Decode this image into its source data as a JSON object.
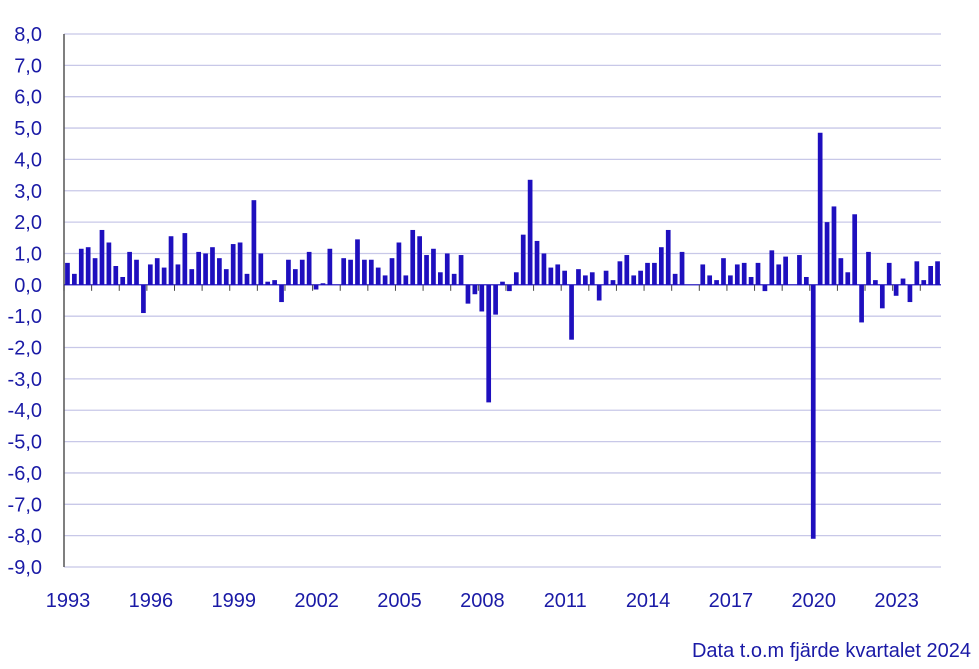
{
  "chart_data": {
    "type": "bar",
    "start_year": 1993,
    "frequency": "quarterly",
    "values": [
      0.7,
      0.35,
      1.15,
      1.2,
      0.85,
      1.75,
      1.35,
      0.6,
      0.25,
      1.05,
      0.8,
      -0.9,
      0.65,
      0.85,
      0.55,
      1.55,
      0.65,
      1.65,
      0.5,
      1.05,
      1.0,
      1.2,
      0.85,
      0.5,
      1.3,
      1.35,
      0.35,
      2.7,
      1.0,
      0.1,
      0.15,
      -0.55,
      0.8,
      0.5,
      0.8,
      1.05,
      -0.15,
      0.05,
      1.15,
      0.0,
      0.85,
      0.8,
      1.45,
      0.8,
      0.8,
      0.55,
      0.3,
      0.85,
      1.35,
      0.3,
      1.75,
      1.55,
      0.95,
      1.15,
      0.4,
      1.0,
      0.35,
      0.95,
      -0.6,
      -0.3,
      -0.85,
      -3.75,
      -0.95,
      0.1,
      -0.2,
      0.4,
      1.6,
      3.35,
      1.4,
      1.0,
      0.55,
      0.65,
      0.45,
      -1.75,
      0.5,
      0.3,
      0.4,
      -0.5,
      0.45,
      0.15,
      0.75,
      0.95,
      0.3,
      0.45,
      0.7,
      0.7,
      1.2,
      1.75,
      0.35,
      1.05,
      0.0,
      0.0,
      0.65,
      0.3,
      0.15,
      0.85,
      0.3,
      0.65,
      0.7,
      0.25,
      0.7,
      -0.2,
      1.1,
      0.65,
      0.9,
      0.0,
      0.95,
      0.25,
      -8.1,
      4.85,
      2.0,
      2.5,
      0.85,
      0.4,
      2.25,
      -1.2,
      1.05,
      0.15,
      -0.75,
      0.7,
      -0.35,
      0.2,
      -0.55,
      0.75,
      0.15,
      0.6,
      0.75
    ],
    "x_tick_labels": [
      "1993",
      "1996",
      "1999",
      "2002",
      "2005",
      "2008",
      "2011",
      "2014",
      "2017",
      "2020",
      "2023"
    ],
    "y_tick_labels": [
      "8,0",
      "7,0",
      "6,0",
      "5,0",
      "4,0",
      "3,0",
      "2,0",
      "1,0",
      "0,0",
      "-1,0",
      "-2,0",
      "-3,0",
      "-4,0",
      "-5,0",
      "-6,0",
      "-7,0",
      "-8,0",
      "-9,0"
    ],
    "ylim": [
      -9,
      8
    ],
    "grid": true,
    "title": "",
    "xlabel": "",
    "ylabel": "",
    "bar_color": "#1e0fbe",
    "grid_color": "#c8c8e8",
    "text_color": "#1a1aa6"
  },
  "footnote": "Data t.o.m fjärde kvartalet 2024"
}
